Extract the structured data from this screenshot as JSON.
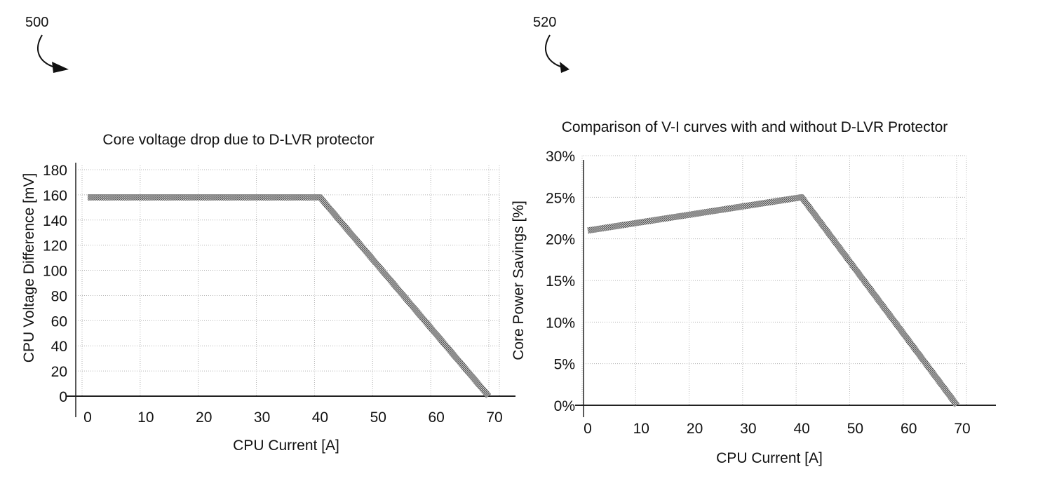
{
  "figure_refs": [
    "500",
    "520"
  ],
  "chart_data": [
    {
      "type": "line",
      "title": "Core voltage drop due to D-LVR protector",
      "xlabel": "CPU Current [A]",
      "ylabel": "CPU Voltage Difference [mV]",
      "xlim": [
        0,
        70
      ],
      "ylim": [
        0,
        180
      ],
      "x_ticks": [
        "0",
        "10",
        "20",
        "30",
        "40",
        "50",
        "60",
        "70"
      ],
      "y_ticks": [
        "0",
        "20",
        "40",
        "60",
        "80",
        "100",
        "120",
        "140",
        "160",
        "180"
      ],
      "x_tick_values": [
        0,
        10,
        20,
        30,
        40,
        50,
        60,
        70
      ],
      "y_tick_values": [
        0,
        20,
        40,
        60,
        80,
        100,
        120,
        140,
        160,
        180
      ],
      "grid": true,
      "series": [
        {
          "name": "voltage difference",
          "x": [
            0,
            40,
            69
          ],
          "y": [
            158,
            158,
            0
          ]
        }
      ]
    },
    {
      "type": "line",
      "title": "Comparison of V-I curves with and without D-LVR Protector",
      "xlabel": "CPU Current [A]",
      "ylabel": "Core Power Savings [%]",
      "xlim": [
        0,
        70
      ],
      "ylim": [
        0,
        30
      ],
      "x_ticks": [
        "0",
        "10",
        "20",
        "30",
        "40",
        "50",
        "60",
        "70"
      ],
      "y_ticks": [
        "0%",
        "5%",
        "10%",
        "15%",
        "20%",
        "25%",
        "30%"
      ],
      "x_tick_values": [
        0,
        10,
        20,
        30,
        40,
        50,
        60,
        70
      ],
      "y_tick_values": [
        0,
        5,
        10,
        15,
        20,
        25,
        30
      ],
      "grid": true,
      "series": [
        {
          "name": "core power savings",
          "x": [
            0,
            40,
            69
          ],
          "y": [
            21,
            25,
            0
          ]
        }
      ]
    }
  ],
  "colors": {
    "line": "#8c8c8c",
    "grid": "#b5b5b5",
    "axis": "#222222"
  }
}
